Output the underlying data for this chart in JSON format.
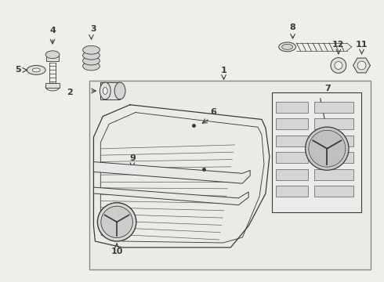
{
  "bg_color": "#f0eeea",
  "inner_bg": "#eceae4",
  "line_color": "#3a3a3a",
  "label_color": "#111111",
  "part_fill": "#e0e0de",
  "part_fill2": "#d4d4d2",
  "white_fill": "#f8f8f6"
}
